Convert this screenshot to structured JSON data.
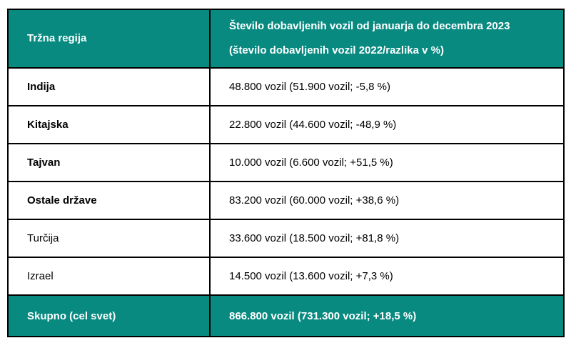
{
  "colors": {
    "accent_teal": "#088a80",
    "border": "#000000",
    "header_text": "#ffffff",
    "body_text": "#000000"
  },
  "table": {
    "header": {
      "col1": "Tržna regija",
      "col2_line1": "Število dobavljenih vozil od januarja do decembra 2023",
      "col2_line2": "(število dobavljenih vozil 2022/razlika v %)"
    },
    "rows": [
      {
        "region": "Indija",
        "value": "48.800 vozil (51.900 vozil; -5,8 %)",
        "bold": true
      },
      {
        "region": "Kitajska",
        "value": "22.800 vozil (44.600 vozil; -48,9 %)",
        "bold": true
      },
      {
        "region": "Tajvan",
        "value": "10.000 vozil (6.600 vozil; +51,5 %)",
        "bold": true
      },
      {
        "region": "Ostale države",
        "value": "83.200 vozil (60.000 vozil; +38,6 %)",
        "bold": true
      },
      {
        "region": "Turčija",
        "value": "33.600 vozil (18.500 vozil; +81,8 %)",
        "bold": false
      },
      {
        "region": "Izrael",
        "value": "14.500 vozil (13.600 vozil; +7,3 %)",
        "bold": false
      }
    ],
    "footer": {
      "region": "Skupno (cel svet)",
      "value": "866.800 vozil (731.300 vozil; +18,5 %)"
    }
  }
}
